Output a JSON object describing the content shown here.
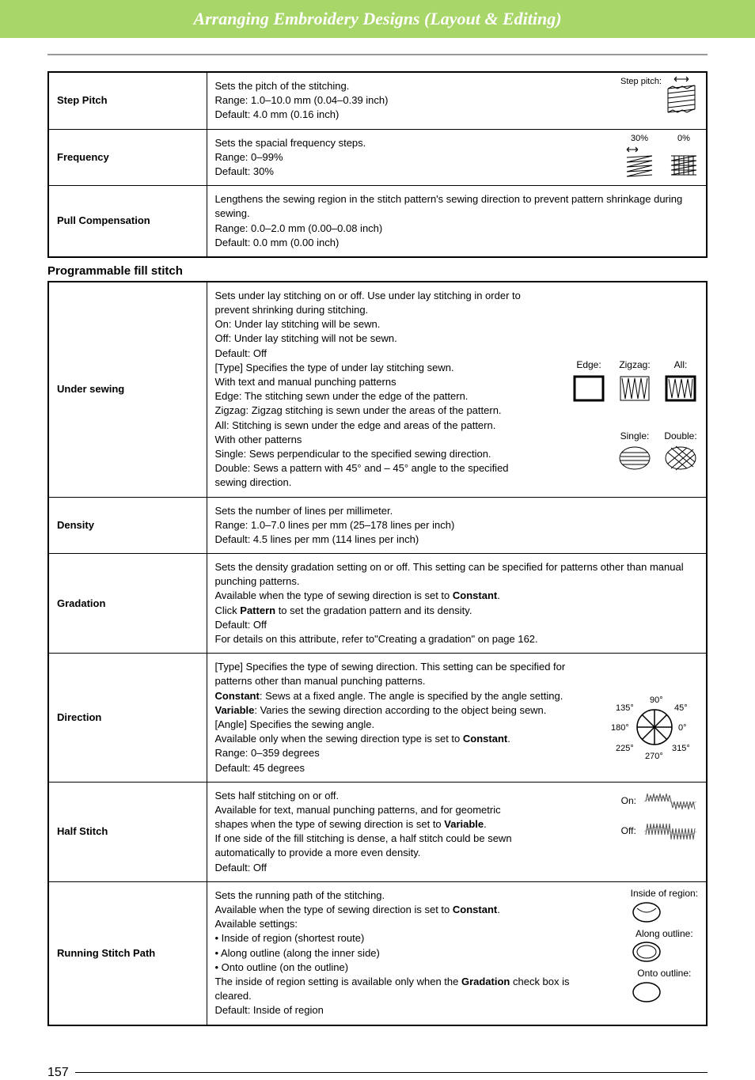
{
  "header": {
    "title": "Arranging Embroidery Designs (Layout & Editing)"
  },
  "table1": {
    "rows": [
      {
        "label": "Step Pitch",
        "desc": "Sets the pitch of the stitching.\nRange: 1.0–10.0 mm (0.04–0.39 inch)\nDefault: 4.0 mm (0.16 inch)",
        "illus_label": "Step pitch:"
      },
      {
        "label": "Frequency",
        "desc": "Sets the spacial frequency steps.\nRange: 0–99%\nDefault: 30%",
        "illus_labels": [
          "30%",
          "0%"
        ]
      },
      {
        "label": "Pull Compensation",
        "desc": "Lengthens the sewing region in the stitch pattern's sewing direction to prevent pattern shrinkage during sewing.\nRange: 0.0–2.0 mm (0.00–0.08 inch)\nDefault: 0.0 mm (0.00 inch)"
      }
    ]
  },
  "section2_title": "Programmable fill stitch",
  "table2": {
    "rows": [
      {
        "label": "Under sewing",
        "desc": "Sets under lay stitching on or off. Use under lay stitching in order to prevent shrinking during stitching.\nOn: Under lay stitching will be sewn.\nOff: Under lay stitching will not be sewn.\nDefault: Off\n[Type] Specifies the type of under lay stitching sewn.\nWith text and manual punching patterns\nEdge: The stitching sewn under the edge of the pattern.\nZigzag: Zigzag stitching is sewn under the areas of the pattern.\nAll: Stitching is sewn under the edge and areas of the pattern.\nWith other patterns\nSingle: Sews perpendicular to the specified sewing direction.\nDouble: Sews a pattern with 45° and – 45° angle to the specified\n            sewing direction.",
        "illus_labels_top": [
          "Edge:",
          "Zigzag:",
          "All:"
        ],
        "illus_labels_bottom": [
          "Single:",
          "Double:"
        ]
      },
      {
        "label": "Density",
        "desc": "Sets the number of lines per millimeter.\nRange: 1.0–7.0 lines per mm (25–178 lines per inch)\nDefault: 4.5 lines per mm (114 lines per inch)"
      },
      {
        "label": "Gradation",
        "desc_html": "Sets the density gradation setting on or off. This setting can be specified for patterns other than manual punching patterns.\nAvailable when the type of sewing direction is set to <b>Constant</b>.\nClick <b>Pattern</b> to set the gradation pattern and its density.\nDefault: Off\nFor details on this attribute, refer to\"Creating a gradation\" on page 162."
      },
      {
        "label": "Direction",
        "desc_html": "[Type] Specifies the type of sewing direction. This setting can be specified for patterns other than manual punching patterns.\n<b>Constant</b>: Sews at a fixed angle. The angle is specified by the angle setting.\n<b>Variable</b>: Varies the sewing direction according to the object being sewn.\n[Angle] Specifies the sewing angle.\nAvailable only when the sewing direction type is set to <b>Constant</b>.\nRange: 0–359 degrees\nDefault: 45 degrees",
        "angles": [
          "90°",
          "45°",
          "0°",
          "315°",
          "270°",
          "225°",
          "180°",
          "135°"
        ]
      },
      {
        "label": "Half Stitch",
        "desc_html": "Sets half stitching on or off.\nAvailable for text, manual punching patterns, and for geometric shapes when the type of sewing direction is set to <b>Variable</b>.\nIf one side of the fill stitching is dense, a half stitch could be sewn automatically to provide a more even density.\nDefault: Off",
        "illus_labels": [
          "On:",
          "Off:"
        ]
      },
      {
        "label": "Running Stitch Path",
        "desc_html": "Sets the running path of the stitching.\nAvailable when the type of sewing direction is set to <b>Constant</b>.\nAvailable settings:\n• Inside of region (shortest route)\n• Along outline (along the inner side)\n• Onto outline (on the outline)\nThe inside of region setting is available only when the <b>Gradation</b> check box is cleared.\nDefault: Inside of region",
        "illus_labels": [
          "Inside of region:",
          "Along outline:",
          "Onto outline:"
        ]
      }
    ]
  },
  "page_number": "157"
}
